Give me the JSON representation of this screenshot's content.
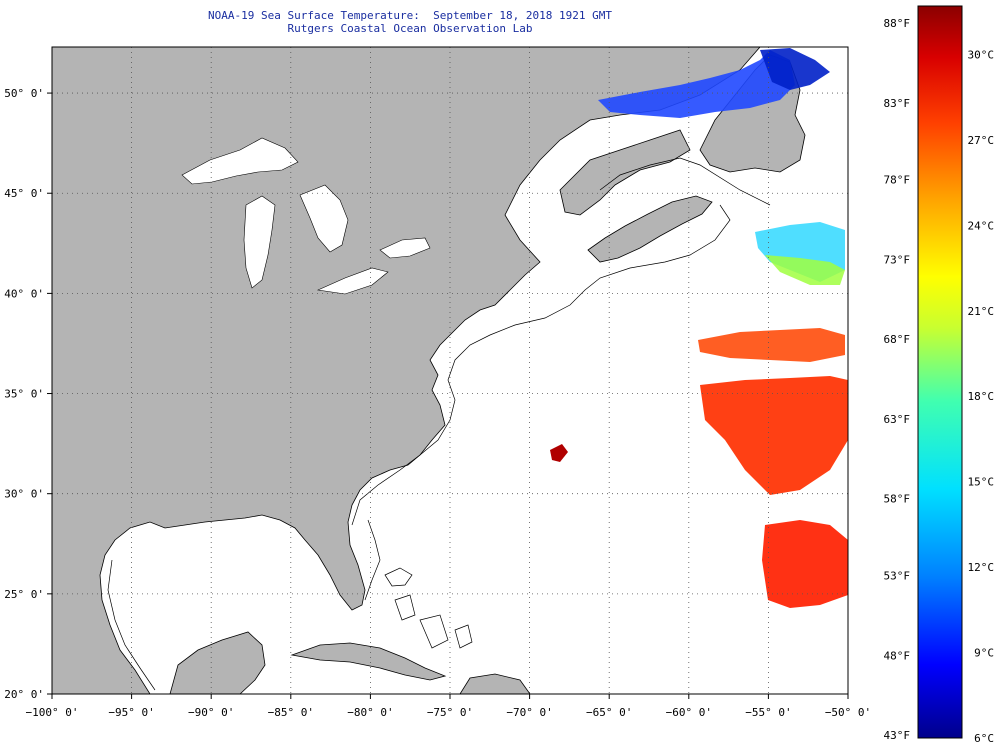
{
  "header": {
    "title": "NOAA-19 Sea Surface Temperature:  September 18, 2018 1921 GMT",
    "subtitle": "Rutgers Coastal Ocean Observation Lab"
  },
  "map": {
    "lon_range": [
      -100,
      -50
    ],
    "lat_range": [
      20,
      52.3
    ],
    "lon_ticks": [
      {
        "value": -100,
        "label": "−100° 0'"
      },
      {
        "value": -95,
        "label": "−95° 0'"
      },
      {
        "value": -90,
        "label": "−90° 0'"
      },
      {
        "value": -85,
        "label": "−85° 0'"
      },
      {
        "value": -80,
        "label": "−80° 0'"
      },
      {
        "value": -75,
        "label": "−75° 0'"
      },
      {
        "value": -70,
        "label": "−70° 0'"
      },
      {
        "value": -65,
        "label": "−65° 0'"
      },
      {
        "value": -60,
        "label": "−60° 0'"
      },
      {
        "value": -55,
        "label": "−55° 0'"
      },
      {
        "value": -50,
        "label": "−50° 0'"
      }
    ],
    "lat_ticks": [
      {
        "value": 20,
        "label": "20° 0'"
      },
      {
        "value": 25,
        "label": "25° 0'"
      },
      {
        "value": 30,
        "label": "30° 0'"
      },
      {
        "value": 35,
        "label": "35° 0'"
      },
      {
        "value": 40,
        "label": "40° 0'"
      },
      {
        "value": 45,
        "label": "45° 0'"
      },
      {
        "value": 50,
        "label": "50° 0'"
      }
    ],
    "grid": "dotted",
    "land_color": "#b4b4b4",
    "coast_color": "#000000"
  },
  "colorbar": {
    "min_c": 6,
    "max_c": 31.7,
    "fahrenheit_labels": [
      {
        "value_c": 6.1,
        "label": "43°F"
      },
      {
        "value_c": 8.9,
        "label": "48°F"
      },
      {
        "value_c": 11.7,
        "label": "53°F"
      },
      {
        "value_c": 14.4,
        "label": "58°F"
      },
      {
        "value_c": 17.2,
        "label": "63°F"
      },
      {
        "value_c": 20.0,
        "label": "68°F"
      },
      {
        "value_c": 22.8,
        "label": "73°F"
      },
      {
        "value_c": 25.6,
        "label": "78°F"
      },
      {
        "value_c": 28.3,
        "label": "83°F"
      },
      {
        "value_c": 31.1,
        "label": "88°F"
      }
    ],
    "celsius_labels": [
      {
        "value_c": 6,
        "label": "6°C"
      },
      {
        "value_c": 9,
        "label": "9°C"
      },
      {
        "value_c": 12,
        "label": "12°C"
      },
      {
        "value_c": 15,
        "label": "15°C"
      },
      {
        "value_c": 18,
        "label": "18°C"
      },
      {
        "value_c": 21,
        "label": "21°C"
      },
      {
        "value_c": 24,
        "label": "24°C"
      },
      {
        "value_c": 27,
        "label": "27°C"
      },
      {
        "value_c": 30,
        "label": "30°C"
      }
    ],
    "colors": [
      "#00008b",
      "#0000ff",
      "#0080ff",
      "#00e0ff",
      "#40ffb0",
      "#c8ff30",
      "#ffff00",
      "#ffa000",
      "#ff4000",
      "#d80000",
      "#8b0000"
    ]
  }
}
